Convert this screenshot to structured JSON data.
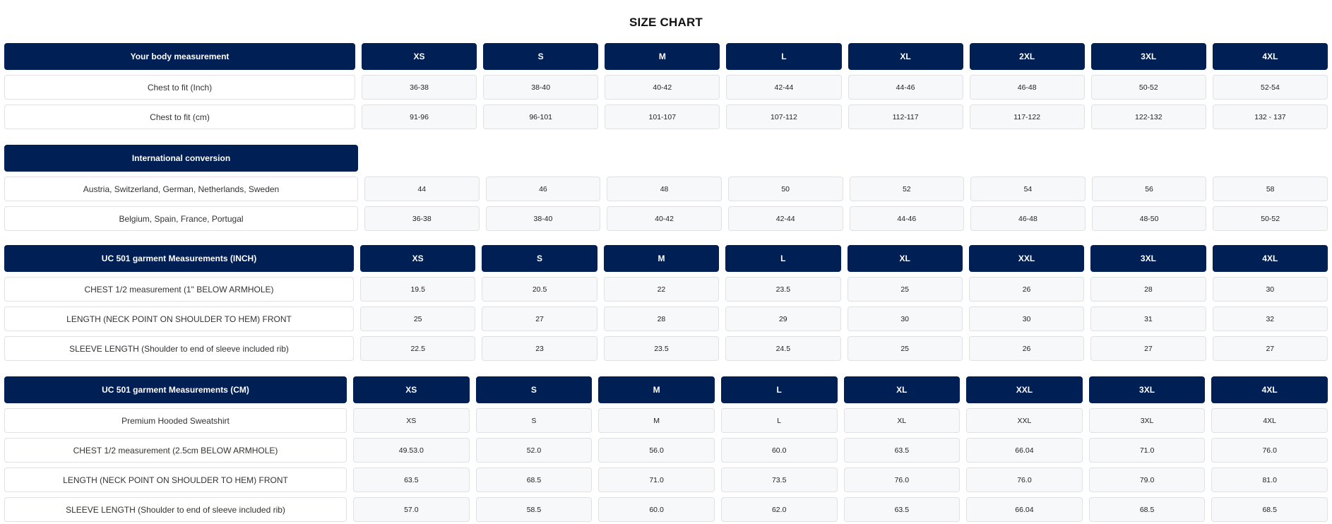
{
  "title": "SIZE CHART",
  "colors": {
    "header_bg": "#001f54",
    "cell_bg": "#f7f8fa",
    "label_bg": "#ffffff"
  },
  "sections": [
    {
      "header": "Your body measurement",
      "sizes": [
        "XS",
        "S",
        "M",
        "L",
        "XL",
        "2XL",
        "3XL",
        "4XL"
      ],
      "rows": [
        {
          "label": "Chest to fit (Inch)",
          "values": [
            "36-38",
            "38-40",
            "40-42",
            "42-44",
            "44-46",
            "46-48",
            "50-52",
            "52-54"
          ]
        },
        {
          "label": "Chest to fit (cm)",
          "values": [
            "91-96",
            "96-101",
            "101-107",
            "107-112",
            "112-117",
            "117-122",
            "122-132",
            "132 - 137"
          ]
        }
      ]
    },
    {
      "header": "International conversion",
      "sizes": [],
      "rows": [
        {
          "label": "Austria, Switzerland, German, Netherlands, Sweden",
          "values": [
            "44",
            "46",
            "48",
            "50",
            "52",
            "54",
            "56",
            "58"
          ]
        },
        {
          "label": "Belgium, Spain, France, Portugal",
          "values": [
            "36-38",
            "38-40",
            "40-42",
            "42-44",
            "44-46",
            "46-48",
            "48-50",
            "50-52"
          ]
        }
      ]
    },
    {
      "header": "UC 501 garment Measurements (INCH)",
      "sizes": [
        "XS",
        "S",
        "M",
        "L",
        "XL",
        "XXL",
        "3XL",
        "4XL"
      ],
      "rows": [
        {
          "label": "CHEST 1/2 measurement (1\" BELOW ARMHOLE)",
          "values": [
            "19.5",
            "20.5",
            "22",
            "23.5",
            "25",
            "26",
            "28",
            "30"
          ]
        },
        {
          "label": "LENGTH (NECK POINT ON SHOULDER TO HEM) FRONT",
          "values": [
            "25",
            "27",
            "28",
            "29",
            "30",
            "30",
            "31",
            "32"
          ]
        },
        {
          "label": "SLEEVE LENGTH (Shoulder to end of sleeve included rib)",
          "values": [
            "22.5",
            "23",
            "23.5",
            "24.5",
            "25",
            "26",
            "27",
            "27"
          ]
        }
      ]
    },
    {
      "header": "UC 501 garment Measurements (CM)",
      "sizes": [
        "XS",
        "S",
        "M",
        "L",
        "XL",
        "XXL",
        "3XL",
        "4XL"
      ],
      "rows": [
        {
          "label": "Premium Hooded Sweatshirt",
          "values": [
            "XS",
            "S",
            "M",
            "L",
            "XL",
            "XXL",
            "3XL",
            "4XL"
          ]
        },
        {
          "label": "CHEST 1/2 measurement (2.5cm BELOW ARMHOLE)",
          "values": [
            "49.53.0",
            "52.0",
            "56.0",
            "60.0",
            "63.5",
            "66.04",
            "71.0",
            "76.0"
          ]
        },
        {
          "label": "LENGTH (NECK POINT ON SHOULDER TO HEM) FRONT",
          "values": [
            "63.5",
            "68.5",
            "71.0",
            "73.5",
            "76.0",
            "76.0",
            "79.0",
            "81.0"
          ]
        },
        {
          "label": "SLEEVE LENGTH (Shoulder to end of sleeve included rib)",
          "values": [
            "57.0",
            "58.5",
            "60.0",
            "62.0",
            "63.5",
            "66.04",
            "68.5",
            "68.5"
          ]
        }
      ]
    }
  ]
}
